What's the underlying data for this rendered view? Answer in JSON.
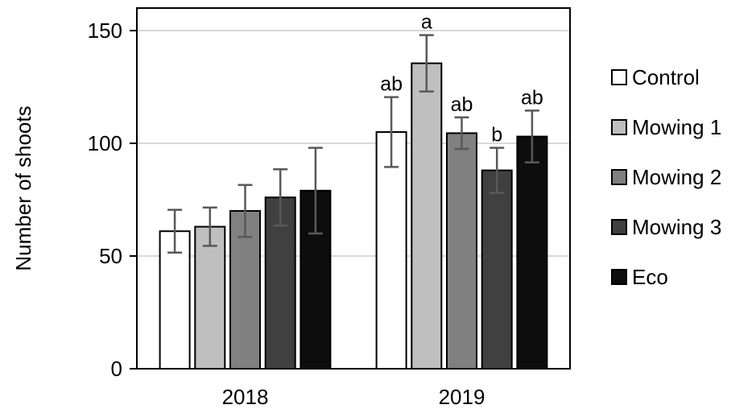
{
  "chart_data": {
    "type": "bar",
    "title": "",
    "xlabel": "",
    "ylabel": "Number of shoots",
    "ylim": [
      0,
      160
    ],
    "yticks": [
      "0",
      "50",
      "100",
      "150"
    ],
    "grid": true,
    "legend_position": "right",
    "categories": [
      "2018",
      "2019"
    ],
    "series": [
      {
        "name": "Control",
        "color": "#ffffff",
        "values": [
          61,
          105
        ],
        "errors": [
          9.5,
          15.5
        ],
        "significance": [
          "",
          "ab"
        ]
      },
      {
        "name": "Mowing 1",
        "color": "#bfbfbf",
        "values": [
          63,
          135.5
        ],
        "errors": [
          8.5,
          12.5
        ],
        "significance": [
          "",
          "a"
        ]
      },
      {
        "name": "Mowing 2",
        "color": "#808080",
        "values": [
          70,
          104.5
        ],
        "errors": [
          11.5,
          7
        ],
        "significance": [
          "",
          "ab"
        ]
      },
      {
        "name": "Mowing 3",
        "color": "#404040",
        "values": [
          76,
          88
        ],
        "errors": [
          12.5,
          10
        ],
        "significance": [
          "",
          "b"
        ]
      },
      {
        "name": "Eco",
        "color": "#0d0d0d",
        "values": [
          79,
          103
        ],
        "errors": [
          19,
          11.5
        ],
        "significance": [
          "",
          "ab"
        ]
      }
    ]
  }
}
